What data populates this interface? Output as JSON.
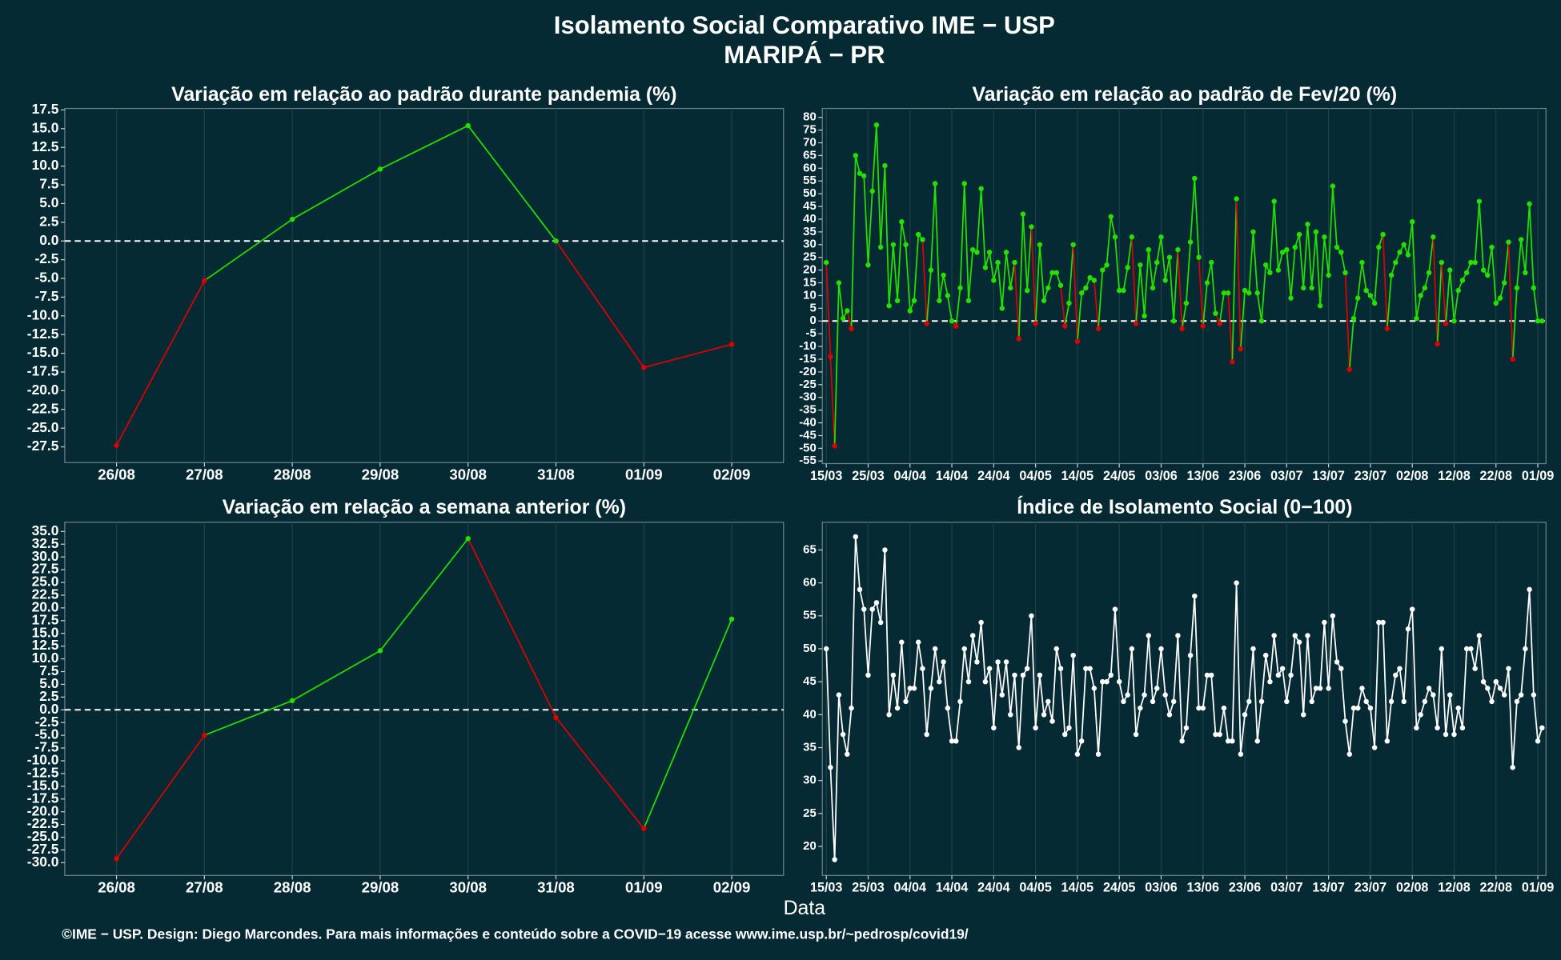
{
  "header": {
    "title": "Isolamento Social Comparativo IME − USP",
    "subtitle": "MARIPÁ − PR"
  },
  "x_label": "Data",
  "footer": "©IME − USP. Design: Diego Marcondes. Para mais informações e conteúdo sobre a COVID−19 acesse www.ime.usp.br/~pedrosp/covid19/",
  "chart_data": [
    {
      "type": "line",
      "title": "Variação em relação ao padrão durante pandemia (%)",
      "categories": [
        "26/08",
        "27/08",
        "28/08",
        "29/08",
        "30/08",
        "31/08",
        "01/09",
        "02/09"
      ],
      "values": [
        -27.3,
        -5.3,
        2.9,
        9.6,
        15.4,
        0,
        -16.9,
        -13.8
      ],
      "colors": {
        "positive": "#22e000",
        "negative": "#e00000"
      },
      "ylim": [
        -29.6,
        17.7
      ],
      "yticks": [
        17.5,
        {
          "value": 15,
          "label": "15.0"
        },
        12.5,
        {
          "value": 10,
          "label": "10.0"
        },
        7.5,
        {
          "value": 5,
          "label": "5.0"
        },
        2.5,
        {
          "value": 0,
          "label": "0.0"
        },
        -2.5,
        {
          "value": -5,
          "label": "-5.0"
        },
        -7.5,
        {
          "value": -10,
          "label": "-10.0"
        },
        -12.5,
        {
          "value": -15,
          "label": "-15.0"
        },
        -17.5,
        {
          "value": -20,
          "label": "-20.0"
        },
        -22.5,
        {
          "value": -25,
          "label": "-25.0"
        },
        -27.5
      ],
      "grid": true
    },
    {
      "type": "line",
      "title": "Variação em relação ao padrão de Fev/20 (%)",
      "categories": [
        "15/03",
        "16/03",
        "17/03",
        "18/03",
        "19/03",
        "20/03",
        "21/03",
        "22/03",
        "23/03",
        "24/03",
        "25/03",
        "26/03",
        "27/03",
        "28/03",
        "29/03",
        "30/03",
        "31/03",
        "01/04",
        "02/04",
        "03/04",
        "04/04",
        "05/04",
        "06/04",
        "07/04",
        "08/04",
        "09/04",
        "10/04",
        "11/04",
        "12/04",
        "13/04",
        "14/04",
        "15/04",
        "16/04",
        "17/04",
        "18/04",
        "19/04",
        "20/04",
        "21/04",
        "22/04",
        "23/04",
        "24/04",
        "25/04",
        "26/04",
        "27/04",
        "28/04",
        "29/04",
        "30/04",
        "01/05",
        "02/05",
        "03/05",
        "04/05",
        "05/05",
        "06/05",
        "07/05",
        "08/05",
        "09/05",
        "10/05",
        "11/05",
        "12/05",
        "13/05",
        "14/05",
        "15/05",
        "16/05",
        "17/05",
        "18/05",
        "19/05",
        "20/05",
        "21/05",
        "22/05",
        "23/05",
        "24/05",
        "25/05",
        "26/05",
        "27/05",
        "28/05",
        "29/05",
        "30/05",
        "31/05",
        "01/06",
        "02/06",
        "03/06",
        "04/06",
        "05/06",
        "06/06",
        "07/06",
        "08/06",
        "09/06",
        "10/06",
        "11/06",
        "12/06",
        "13/06",
        "14/06",
        "15/06",
        "16/06",
        "17/06",
        "18/06",
        "19/06",
        "20/06",
        "21/06",
        "22/06",
        "23/06",
        "24/06",
        "25/06",
        "26/06",
        "27/06",
        "28/06",
        "29/06",
        "30/06",
        "01/07",
        "02/07",
        "03/07",
        "04/07",
        "05/07",
        "06/07",
        "07/07",
        "08/07",
        "09/07",
        "10/07",
        "11/07",
        "12/07",
        "13/07",
        "14/07",
        "15/07",
        "16/07",
        "17/07",
        "18/07",
        "19/07",
        "20/07",
        "21/07",
        "22/07",
        "23/07",
        "24/07",
        "25/07",
        "26/07",
        "27/07",
        "28/07",
        "29/07",
        "30/07",
        "31/07",
        "01/08",
        "02/08",
        "03/08",
        "04/08",
        "05/08",
        "06/08",
        "07/08",
        "08/08",
        "09/08",
        "10/08",
        "11/08",
        "12/08",
        "13/08",
        "14/08",
        "15/08",
        "16/08",
        "17/08",
        "18/08",
        "19/08",
        "20/08",
        "21/08",
        "22/08",
        "23/08",
        "24/08",
        "25/08",
        "26/08",
        "27/08",
        "28/08",
        "29/08",
        "30/08",
        "31/08",
        "01/09",
        "02/09"
      ],
      "values": [
        23,
        -14,
        -49,
        15,
        1,
        4,
        -3,
        65,
        58,
        57,
        22,
        51,
        77,
        29,
        61,
        6,
        30,
        8,
        39,
        30,
        4,
        8,
        34,
        32,
        -1,
        20,
        54,
        8,
        18,
        10,
        0,
        -2,
        13,
        54,
        8,
        28,
        27,
        52,
        21,
        27,
        16,
        23,
        5,
        27,
        13,
        23,
        -7,
        42,
        12,
        37,
        -1,
        30,
        8,
        13,
        19,
        19,
        14,
        -2,
        7,
        30,
        -8,
        11,
        13,
        17,
        16,
        -3,
        20,
        22,
        41,
        33,
        12,
        12,
        21,
        33,
        -1,
        22,
        2,
        28,
        13,
        23,
        33,
        16,
        25,
        0,
        28,
        -3,
        7,
        31,
        56,
        25,
        -2,
        15,
        23,
        3,
        -1,
        11,
        11,
        -16,
        48,
        -11,
        12,
        11,
        35,
        11,
        0,
        22,
        19,
        47,
        20,
        27,
        28,
        9,
        29,
        34,
        13,
        38,
        13,
        35,
        6,
        33,
        18,
        53,
        29,
        27,
        19,
        -19,
        1,
        9,
        23,
        12,
        10,
        7,
        29,
        34,
        -3,
        18,
        23,
        27,
        30,
        26,
        39,
        1,
        10,
        13,
        19,
        33,
        -9,
        23,
        -1,
        20,
        0,
        12,
        16,
        19,
        23,
        23,
        47,
        20,
        18,
        29,
        7,
        9,
        15,
        31,
        -15,
        13,
        32,
        19,
        46,
        13,
        0,
        0
      ],
      "colors": {
        "positive": "#22e000",
        "negative": "#e00000"
      },
      "xticks": [
        "15/03",
        "25/03",
        "04/04",
        "14/04",
        "24/04",
        "04/05",
        "14/05",
        "24/05",
        "03/06",
        "13/06",
        "23/06",
        "03/07",
        "13/07",
        "23/07",
        "02/08",
        "12/08",
        "22/08",
        "01/09"
      ],
      "ylim": [
        -56,
        83.5
      ],
      "yticks": [
        80,
        75,
        70,
        65,
        60,
        55,
        50,
        45,
        40,
        35,
        30,
        25,
        20,
        15,
        10,
        5,
        0,
        -5,
        -10,
        -15,
        -20,
        -25,
        -30,
        -35,
        -40,
        -45,
        -50,
        -55
      ],
      "grid": true
    },
    {
      "type": "line",
      "title": "Variação em relação a semana anterior (%)",
      "categories": [
        "26/08",
        "27/08",
        "28/08",
        "29/08",
        "30/08",
        "31/08",
        "01/09",
        "02/09"
      ],
      "values": [
        -29.2,
        -5,
        1.8,
        11.6,
        33.6,
        -1.5,
        -23.3,
        17.8
      ],
      "colors": {
        "positive": "#22e000",
        "negative": "#e00000"
      },
      "ylim": [
        -32.5,
        36.8
      ],
      "yticks": [
        {
          "value": 35,
          "label": "35.0"
        },
        32.5,
        {
          "value": 30,
          "label": "30.0"
        },
        27.5,
        {
          "value": 25,
          "label": "25.0"
        },
        22.5,
        {
          "value": 20,
          "label": "20.0"
        },
        17.5,
        {
          "value": 15,
          "label": "15.0"
        },
        12.5,
        {
          "value": 10,
          "label": "10.0"
        },
        7.5,
        {
          "value": 5,
          "label": "5.0"
        },
        2.5,
        {
          "value": 0,
          "label": "0.0"
        },
        -2.5,
        {
          "value": -5,
          "label": "-5.0"
        },
        -7.5,
        {
          "value": -10,
          "label": "-10.0"
        },
        -12.5,
        {
          "value": -15,
          "label": "-15.0"
        },
        -17.5,
        {
          "value": -20,
          "label": "-20.0"
        },
        -22.5,
        {
          "value": -25,
          "label": "-25.0"
        },
        -27.5,
        {
          "value": -30,
          "label": "-30.0"
        }
      ],
      "grid": true
    },
    {
      "type": "line",
      "title": "Índice de Isolamento Social (0−100)",
      "categories": [
        "15/03",
        "16/03",
        "17/03",
        "18/03",
        "19/03",
        "20/03",
        "21/03",
        "22/03",
        "23/03",
        "24/03",
        "25/03",
        "26/03",
        "27/03",
        "28/03",
        "29/03",
        "30/03",
        "31/03",
        "01/04",
        "02/04",
        "03/04",
        "04/04",
        "05/04",
        "06/04",
        "07/04",
        "08/04",
        "09/04",
        "10/04",
        "11/04",
        "12/04",
        "13/04",
        "14/04",
        "15/04",
        "16/04",
        "17/04",
        "18/04",
        "19/04",
        "20/04",
        "21/04",
        "22/04",
        "23/04",
        "24/04",
        "25/04",
        "26/04",
        "27/04",
        "28/04",
        "29/04",
        "30/04",
        "01/05",
        "02/05",
        "03/05",
        "04/05",
        "05/05",
        "06/05",
        "07/05",
        "08/05",
        "09/05",
        "10/05",
        "11/05",
        "12/05",
        "13/05",
        "14/05",
        "15/05",
        "16/05",
        "17/05",
        "18/05",
        "19/05",
        "20/05",
        "21/05",
        "22/05",
        "23/05",
        "24/05",
        "25/05",
        "26/05",
        "27/05",
        "28/05",
        "29/05",
        "30/05",
        "31/05",
        "01/06",
        "02/06",
        "03/06",
        "04/06",
        "05/06",
        "06/06",
        "07/06",
        "08/06",
        "09/06",
        "10/06",
        "11/06",
        "12/06",
        "13/06",
        "14/06",
        "15/06",
        "16/06",
        "17/06",
        "18/06",
        "19/06",
        "20/06",
        "21/06",
        "22/06",
        "23/06",
        "24/06",
        "25/06",
        "26/06",
        "27/06",
        "28/06",
        "29/06",
        "30/06",
        "01/07",
        "02/07",
        "03/07",
        "04/07",
        "05/07",
        "06/07",
        "07/07",
        "08/07",
        "09/07",
        "10/07",
        "11/07",
        "12/07",
        "13/07",
        "14/07",
        "15/07",
        "16/07",
        "17/07",
        "18/07",
        "19/07",
        "20/07",
        "21/07",
        "22/07",
        "23/07",
        "24/07",
        "25/07",
        "26/07",
        "27/07",
        "28/07",
        "29/07",
        "30/07",
        "31/07",
        "01/08",
        "02/08",
        "03/08",
        "04/08",
        "05/08",
        "06/08",
        "07/08",
        "08/08",
        "09/08",
        "10/08",
        "11/08",
        "12/08",
        "13/08",
        "14/08",
        "15/08",
        "16/08",
        "17/08",
        "18/08",
        "19/08",
        "20/08",
        "21/08",
        "22/08",
        "23/08",
        "24/08",
        "25/08",
        "26/08",
        "27/08",
        "28/08",
        "29/08",
        "30/08",
        "31/08",
        "01/09",
        "02/09"
      ],
      "values": [
        50,
        32,
        18,
        43,
        37,
        34,
        41,
        67,
        59,
        56,
        46,
        56,
        57,
        54,
        65,
        40,
        46,
        41,
        51,
        42,
        44,
        44,
        51,
        47,
        37,
        44,
        50,
        45,
        48,
        41,
        36,
        36,
        42,
        50,
        45,
        52,
        48,
        54,
        45,
        47,
        38,
        48,
        43,
        48,
        40,
        46,
        35,
        46,
        47,
        55,
        38,
        46,
        40,
        42,
        39,
        50,
        47,
        37,
        38,
        49,
        34,
        36,
        47,
        47,
        44,
        34,
        45,
        45,
        46,
        56,
        45,
        42,
        43,
        50,
        37,
        41,
        43,
        52,
        42,
        44,
        50,
        43,
        40,
        42,
        52,
        36,
        38,
        49,
        58,
        41,
        41,
        46,
        46,
        37,
        37,
        41,
        36,
        36,
        60,
        34,
        40,
        42,
        50,
        36,
        42,
        49,
        45,
        52,
        46,
        47,
        42,
        46,
        52,
        51,
        40,
        52,
        42,
        44,
        44,
        54,
        44,
        55,
        48,
        47,
        39,
        34,
        41,
        41,
        44,
        42,
        41,
        35,
        54,
        54,
        36,
        42,
        46,
        47,
        42,
        53,
        56,
        38,
        40,
        42,
        44,
        43,
        38,
        50,
        37,
        43,
        37,
        41,
        38,
        50,
        50,
        47,
        52,
        45,
        44,
        42,
        45,
        44,
        43,
        47,
        32,
        42,
        43,
        50,
        59,
        43,
        36,
        38
      ],
      "color": "#ffffff",
      "xticks": [
        "15/03",
        "25/03",
        "04/04",
        "14/04",
        "24/04",
        "04/05",
        "14/05",
        "24/05",
        "03/06",
        "13/06",
        "23/06",
        "03/07",
        "13/07",
        "23/07",
        "02/08",
        "12/08",
        "22/08",
        "01/09"
      ],
      "ylim": [
        15.6,
        69.2
      ],
      "yticks": [
        20,
        25,
        30,
        35,
        40,
        45,
        50,
        55,
        60,
        65
      ],
      "grid": true
    }
  ]
}
